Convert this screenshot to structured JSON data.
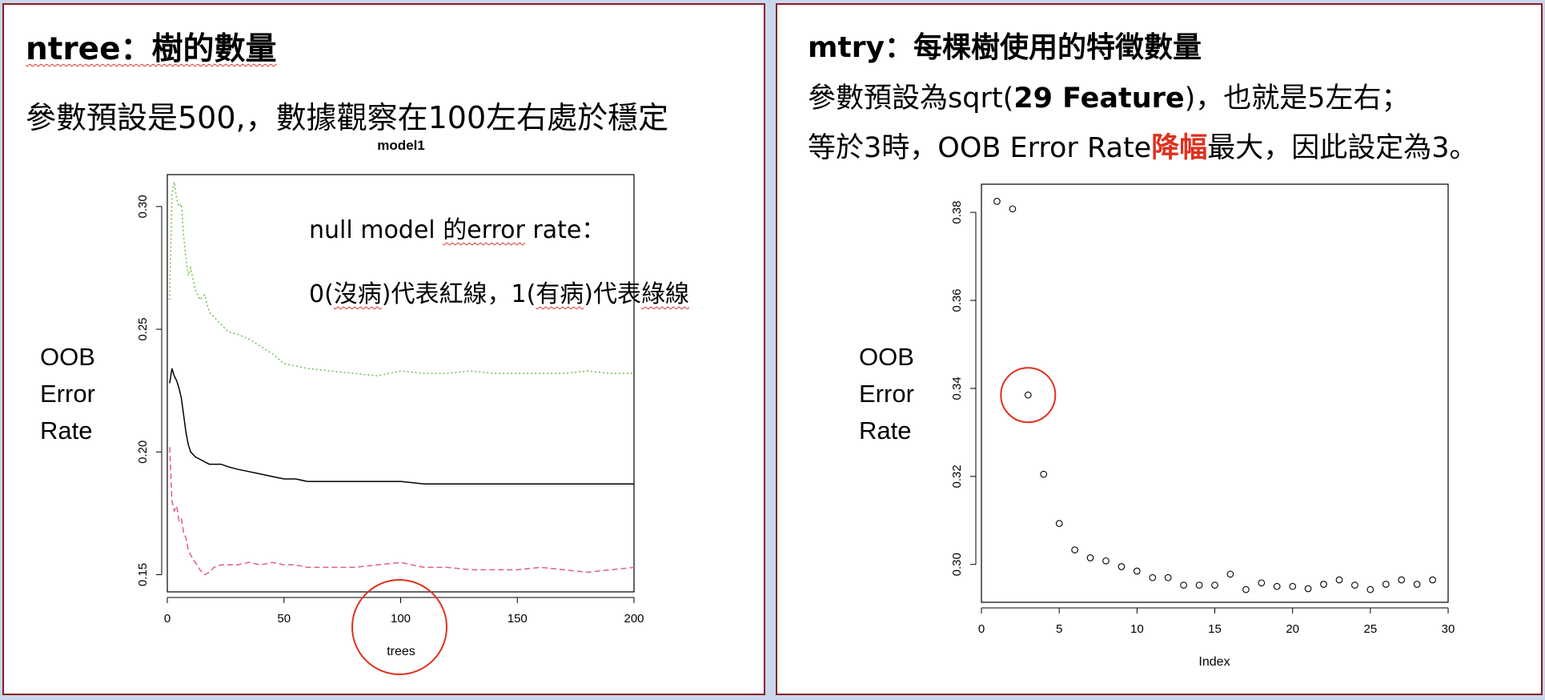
{
  "left": {
    "title": "ntree：樹的數量",
    "subtitle": "參數預設是500,，數據觀察在100左右處於穩定",
    "y_axis_label_lines": [
      "OOB",
      "Error",
      "Rate"
    ],
    "annotation_line1_a": "null model ",
    "annotation_line1_b": "的error",
    "annotation_line1_c": " rate：",
    "annotation_line2_a": "0(",
    "annotation_line2_b": "沒病",
    "annotation_line2_c": ")代表紅線，1(",
    "annotation_line2_d": "有病",
    "annotation_line2_e": ")代表",
    "annotation_line2_f": "綠線",
    "highlight_circle_color": "#e0301e"
  },
  "right": {
    "title": "mtry：每棵樹使用的特徵數量",
    "line1_a": "參數預設為sqrt(",
    "line1_b": "29 Feature",
    "line1_c": ")，也就是5左右；",
    "line2_a": "等於3時，OOB Error Rate",
    "line2_b": "降幅",
    "line2_c": "最大，因此設定為3。",
    "y_axis_label_lines": [
      "OOB",
      "Error",
      "Rate"
    ],
    "highlight_circle_color": "#e0301e"
  },
  "chart_data": [
    {
      "type": "line",
      "title": "model1",
      "xlabel": "trees",
      "ylabel": "",
      "xlim": [
        0,
        200
      ],
      "ylim": [
        0.143,
        0.313
      ],
      "xticks": [
        0,
        50,
        100,
        150,
        200
      ],
      "yticks": [
        0.15,
        0.2,
        0.25,
        0.3
      ],
      "x": [
        1,
        2,
        3,
        4,
        5,
        6,
        7,
        8,
        9,
        10,
        12,
        14,
        16,
        18,
        20,
        23,
        26,
        30,
        35,
        40,
        45,
        50,
        55,
        60,
        70,
        80,
        90,
        100,
        110,
        120,
        130,
        140,
        150,
        160,
        170,
        180,
        190,
        200
      ],
      "series": [
        {
          "color": "#000000",
          "dash": "solid",
          "values": [
            0.228,
            0.234,
            0.231,
            0.229,
            0.226,
            0.222,
            0.215,
            0.208,
            0.203,
            0.2,
            0.198,
            0.197,
            0.196,
            0.195,
            0.195,
            0.195,
            0.194,
            0.193,
            0.192,
            0.191,
            0.19,
            0.189,
            0.189,
            0.188,
            0.188,
            0.188,
            0.188,
            0.188,
            0.187,
            0.187,
            0.187,
            0.187,
            0.187,
            0.187,
            0.187,
            0.187,
            0.187,
            0.187
          ]
        },
        {
          "color": "#e0607a",
          "dash": "dashed",
          "values": [
            0.202,
            0.18,
            0.176,
            0.178,
            0.172,
            0.173,
            0.167,
            0.165,
            0.16,
            0.158,
            0.155,
            0.152,
            0.15,
            0.151,
            0.153,
            0.154,
            0.154,
            0.154,
            0.155,
            0.154,
            0.155,
            0.154,
            0.154,
            0.153,
            0.153,
            0.153,
            0.154,
            0.155,
            0.153,
            0.153,
            0.152,
            0.152,
            0.152,
            0.153,
            0.152,
            0.151,
            0.152,
            0.153
          ]
        },
        {
          "color": "#6cc04a",
          "dash": "dotted",
          "values": [
            0.262,
            0.305,
            0.31,
            0.303,
            0.3,
            0.301,
            0.288,
            0.279,
            0.272,
            0.275,
            0.266,
            0.262,
            0.264,
            0.257,
            0.255,
            0.252,
            0.249,
            0.248,
            0.246,
            0.243,
            0.24,
            0.236,
            0.235,
            0.234,
            0.233,
            0.232,
            0.231,
            0.233,
            0.232,
            0.232,
            0.233,
            0.232,
            0.232,
            0.232,
            0.232,
            0.233,
            0.232,
            0.232
          ]
        }
      ]
    },
    {
      "type": "scatter",
      "title": "",
      "xlabel": "Index",
      "ylabel": "",
      "xlim": [
        0,
        30
      ],
      "ylim": [
        0.2914,
        0.3864
      ],
      "xticks": [
        0,
        5,
        10,
        15,
        20,
        25,
        30
      ],
      "yticks": [
        0.3,
        0.32,
        0.34,
        0.36,
        0.38
      ],
      "x": [
        1,
        2,
        3,
        4,
        5,
        6,
        7,
        8,
        9,
        10,
        11,
        12,
        13,
        14,
        15,
        16,
        17,
        18,
        19,
        20,
        21,
        22,
        23,
        24,
        25,
        26,
        27,
        28,
        29
      ],
      "values": [
        0.3825,
        0.3808,
        0.3385,
        0.3205,
        0.3093,
        0.3033,
        0.3015,
        0.3008,
        0.2995,
        0.2985,
        0.297,
        0.297,
        0.2953,
        0.2953,
        0.2953,
        0.2978,
        0.2943,
        0.2958,
        0.295,
        0.295,
        0.2945,
        0.2955,
        0.2965,
        0.2953,
        0.2943,
        0.2955,
        0.2965,
        0.2955,
        0.2965
      ]
    }
  ]
}
